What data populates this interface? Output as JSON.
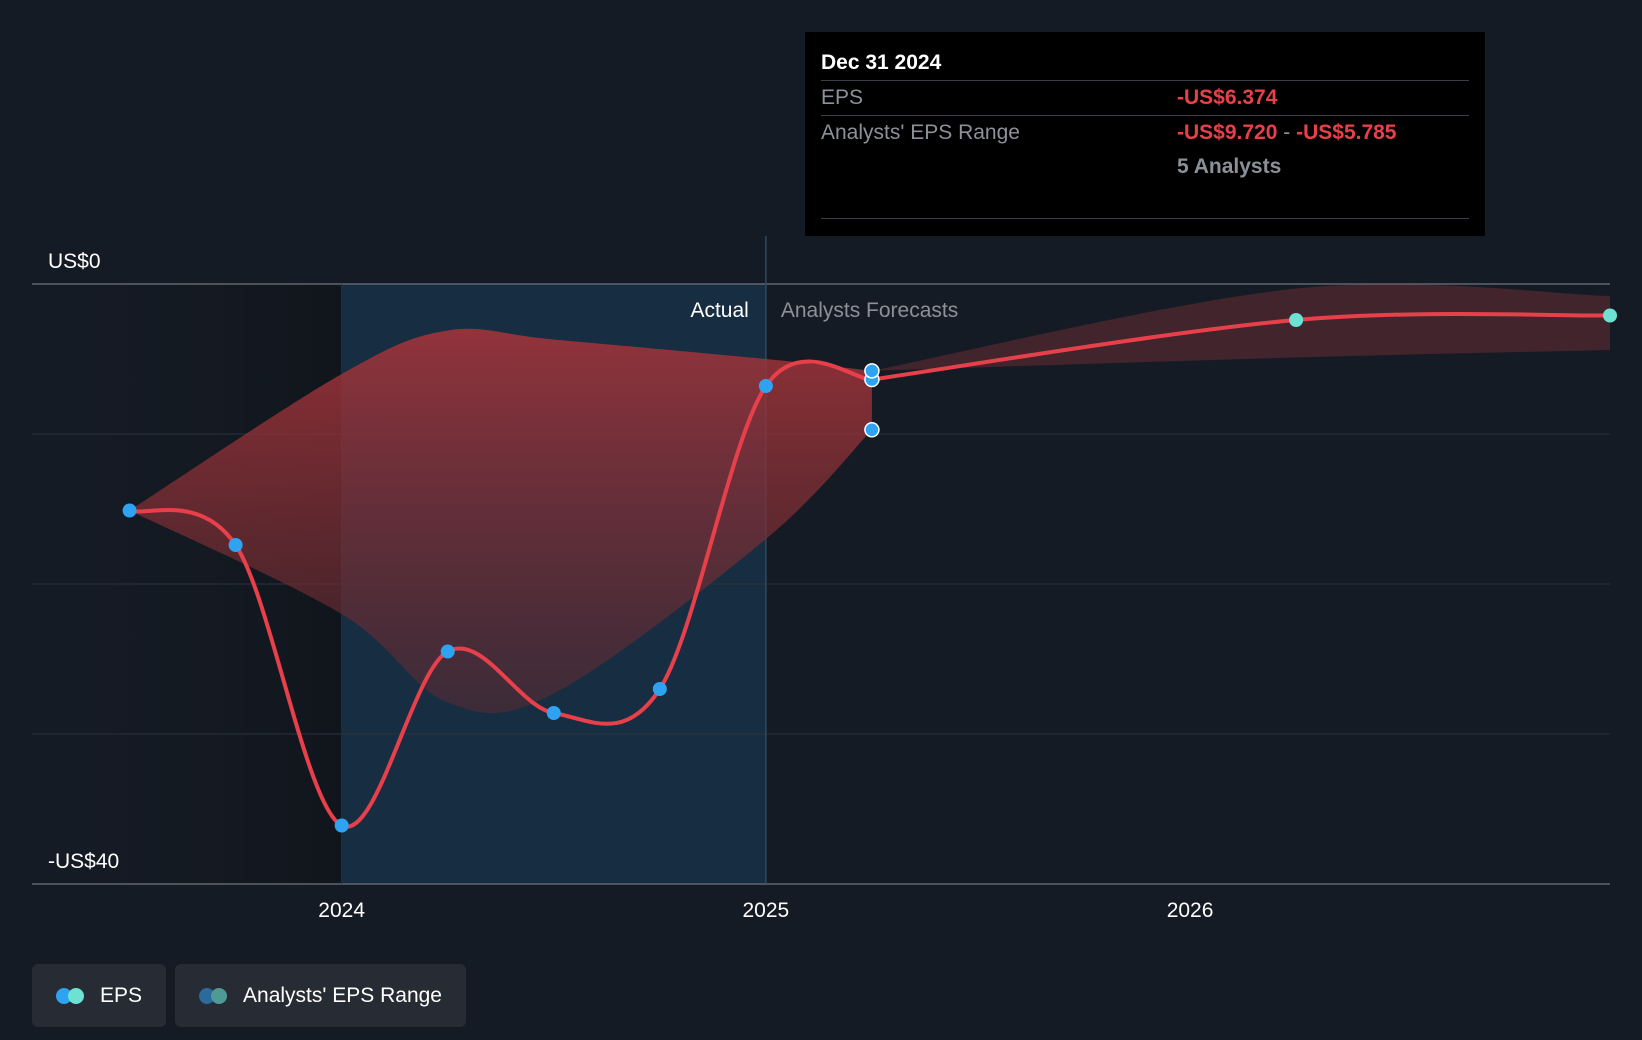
{
  "chart_data": {
    "type": "line",
    "y_axis": {
      "top_label": "US$0",
      "bottom_label": "-US$40",
      "ylim": [
        -40,
        0
      ]
    },
    "x_ticks": [
      "2024",
      "2025",
      "2026"
    ],
    "x_range": [
      2023.27,
      2026.99
    ],
    "divider_x": 2025.0,
    "section_labels": {
      "actual": "Actual",
      "forecast": "Analysts Forecasts"
    },
    "eps_actual": [
      {
        "x": 2023.5,
        "y": -15.1
      },
      {
        "x": 2023.75,
        "y": -17.4
      },
      {
        "x": 2024.0,
        "y": -36.1
      },
      {
        "x": 2024.25,
        "y": -24.5
      },
      {
        "x": 2024.5,
        "y": -28.6
      },
      {
        "x": 2024.75,
        "y": -27.0
      },
      {
        "x": 2025.0,
        "y": -6.8
      },
      {
        "x": 2025.25,
        "y": -6.37
      }
    ],
    "eps_forecast": [
      {
        "x": 2025.25,
        "y": -6.37
      },
      {
        "x": 2026.25,
        "y": -2.4
      },
      {
        "x": 2026.99,
        "y": -2.1
      }
    ],
    "range_past": {
      "x": [
        2023.5,
        2024.0,
        2024.25,
        2024.5,
        2025.0,
        2025.25
      ],
      "high": [
        -15.1,
        -6.0,
        -3.1,
        -3.7,
        -5.0,
        -5.79
      ],
      "low": [
        -15.1,
        -22.0,
        -27.9,
        -27.3,
        -17.0,
        -9.72
      ]
    },
    "range_future": {
      "x": [
        2025.25,
        2026.25,
        2026.99
      ],
      "high": [
        -5.79,
        -0.3,
        -0.8
      ],
      "low": [
        -5.79,
        -4.9,
        -4.4
      ]
    },
    "colors": {
      "eps_line": "#e8404a",
      "eps_dot_actual": "#2ea3f2",
      "eps_dot_forecast": "#6de1d2",
      "range_fill": "#a83a40",
      "forecast_band": "#173046",
      "grid": "#2a323c",
      "axis": "#5e6670"
    }
  },
  "tooltip": {
    "date": "Dec 31 2024",
    "eps_label": "EPS",
    "eps_value": "-US$6.374",
    "range_label": "Analysts' EPS Range",
    "range_low": "-US$9.720",
    "range_sep": "-",
    "range_high": "-US$5.785",
    "analysts": "5 Analysts"
  },
  "legend": {
    "eps": {
      "label": "EPS",
      "color_a": "#2ea3f2",
      "color_b": "#6de1d2"
    },
    "range": {
      "label": "Analysts' EPS Range",
      "color_a": "#2c6a9e",
      "color_b": "#4f9a94"
    }
  }
}
